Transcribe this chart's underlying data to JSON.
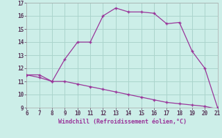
{
  "x": [
    6,
    7,
    8,
    9,
    10,
    11,
    12,
    13,
    14,
    15,
    16,
    17,
    18,
    19,
    20,
    21
  ],
  "y_upper": [
    11.5,
    11.5,
    11.0,
    12.7,
    14.0,
    14.0,
    16.0,
    16.6,
    16.3,
    16.3,
    16.2,
    15.4,
    15.5,
    13.3,
    12.0,
    9.0
  ],
  "y_lower": [
    11.5,
    11.3,
    11.0,
    11.0,
    10.8,
    10.6,
    10.4,
    10.2,
    10.0,
    9.8,
    9.6,
    9.4,
    9.3,
    9.2,
    9.1,
    8.9
  ],
  "line_color": "#993399",
  "marker": "+",
  "xlabel": "Windchill (Refroidissement éolien,°C)",
  "xlim": [
    6,
    21
  ],
  "ylim": [
    9,
    17
  ],
  "xticks": [
    6,
    7,
    8,
    9,
    10,
    11,
    12,
    13,
    14,
    15,
    16,
    17,
    18,
    19,
    20,
    21
  ],
  "yticks": [
    9,
    10,
    11,
    12,
    13,
    14,
    15,
    16,
    17
  ],
  "bg_color": "#cceee8",
  "grid_color": "#aad4cc"
}
